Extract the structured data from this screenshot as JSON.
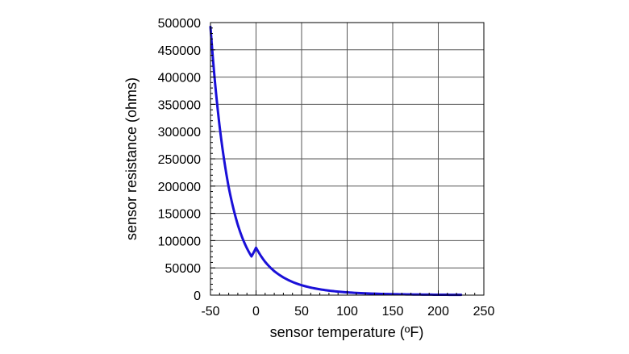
{
  "chart_data": {
    "type": "line",
    "xlabel": "sensor temperature (ºF)",
    "ylabel": "sensor resistance (ohms)",
    "xlim": [
      -50,
      250
    ],
    "ylim": [
      0,
      500000
    ],
    "x_ticks": [
      -50,
      0,
      50,
      100,
      150,
      200,
      250
    ],
    "y_ticks": [
      0,
      50000,
      100000,
      150000,
      200000,
      250000,
      300000,
      350000,
      400000,
      450000,
      500000
    ],
    "x_tick_labels": [
      "-50",
      "0",
      "50",
      "100",
      "150",
      "200",
      "250"
    ],
    "y_tick_labels": [
      "0",
      "50000",
      "100000",
      "150000",
      "200000",
      "250000",
      "300000",
      "350000",
      "400000",
      "450000",
      "500000"
    ],
    "grid": true,
    "series": [
      {
        "color": "#1a10d8",
        "x": [
          -50,
          -45,
          -40,
          -35,
          -30,
          -25,
          -20,
          -15,
          -10,
          -5,
          0,
          10,
          20,
          30,
          40,
          50,
          60,
          70,
          80,
          90,
          100,
          120,
          140,
          160,
          180,
          200,
          225
        ],
        "y": [
          492000,
          390000,
          310000,
          248000,
          198000,
          160000,
          129000,
          105000,
          86000,
          71000,
          87000,
          61000,
          44000,
          32500,
          24200,
          18200,
          13900,
          10700,
          8300,
          6500,
          5100,
          3300,
          2200,
          1500,
          1050,
          750,
          500
        ]
      }
    ]
  }
}
